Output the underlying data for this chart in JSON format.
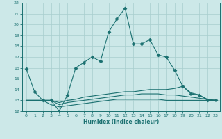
{
  "xlabel": "Humidex (Indice chaleur)",
  "bg_color": "#cce8e8",
  "grid_color": "#a8cece",
  "line_color": "#1a7070",
  "xlim": [
    -0.5,
    23.5
  ],
  "ylim": [
    12,
    22
  ],
  "xticks": [
    0,
    1,
    2,
    3,
    4,
    5,
    6,
    7,
    8,
    9,
    10,
    11,
    12,
    13,
    14,
    15,
    16,
    17,
    18,
    19,
    20,
    21,
    22,
    23
  ],
  "yticks": [
    12,
    13,
    14,
    15,
    16,
    17,
    18,
    19,
    20,
    21,
    22
  ],
  "series": [
    {
      "x": [
        0,
        1,
        2,
        3,
        4,
        5,
        6,
        7,
        8,
        9,
        10,
        11,
        12,
        13,
        14,
        15,
        16,
        17,
        18,
        19,
        20,
        21,
        22,
        23
      ],
      "y": [
        15.9,
        13.8,
        13.0,
        13.0,
        12.0,
        13.5,
        16.0,
        16.5,
        17.0,
        16.6,
        19.3,
        20.5,
        21.5,
        18.2,
        18.2,
        18.6,
        17.2,
        17.0,
        15.8,
        14.3,
        13.6,
        13.5,
        13.0,
        13.0
      ],
      "marker": "D",
      "ms": 2.5
    },
    {
      "x": [
        0,
        1,
        2,
        3,
        4,
        5,
        6,
        7,
        8,
        9,
        10,
        11,
        12,
        13,
        14,
        15,
        16,
        17,
        18,
        19,
        20,
        21,
        22,
        23
      ],
      "y": [
        13.0,
        13.0,
        13.0,
        13.0,
        12.8,
        13.0,
        13.1,
        13.3,
        13.4,
        13.5,
        13.6,
        13.7,
        13.8,
        13.8,
        13.9,
        14.0,
        14.0,
        14.0,
        14.1,
        14.3,
        13.7,
        13.5,
        13.1,
        13.0
      ],
      "marker": null,
      "ms": 0
    },
    {
      "x": [
        0,
        1,
        2,
        3,
        4,
        5,
        6,
        7,
        8,
        9,
        10,
        11,
        12,
        13,
        14,
        15,
        16,
        17,
        18,
        19,
        20,
        21,
        22,
        23
      ],
      "y": [
        13.0,
        13.0,
        13.0,
        13.0,
        12.6,
        12.8,
        12.9,
        13.0,
        13.1,
        13.2,
        13.3,
        13.4,
        13.5,
        13.5,
        13.6,
        13.6,
        13.6,
        13.5,
        13.5,
        13.4,
        13.3,
        13.2,
        13.1,
        13.0
      ],
      "marker": null,
      "ms": 0
    },
    {
      "x": [
        0,
        1,
        2,
        3,
        4,
        5,
        6,
        7,
        8,
        9,
        10,
        11,
        12,
        13,
        14,
        15,
        16,
        17,
        18,
        19,
        20,
        21,
        22,
        23
      ],
      "y": [
        13.0,
        13.0,
        13.0,
        12.6,
        12.4,
        12.5,
        12.6,
        12.7,
        12.8,
        12.9,
        13.0,
        13.1,
        13.1,
        13.1,
        13.1,
        13.1,
        13.1,
        13.0,
        13.0,
        13.0,
        13.0,
        13.0,
        13.0,
        13.0
      ],
      "marker": null,
      "ms": 0
    }
  ]
}
